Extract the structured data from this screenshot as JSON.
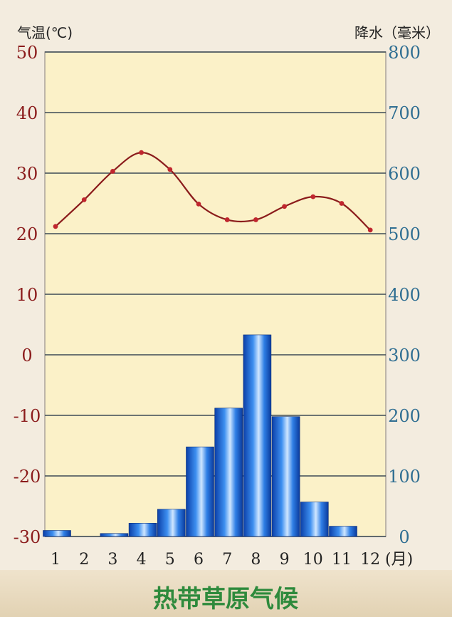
{
  "chart_data": {
    "type": "bar+line",
    "title": "热带草原气候",
    "categories": [
      "1",
      "2",
      "3",
      "4",
      "5",
      "6",
      "7",
      "8",
      "9",
      "10",
      "11",
      "12"
    ],
    "x_unit": "(月)",
    "temperature": {
      "axis_label": "气温(℃)",
      "values": [
        21.2,
        25.6,
        30.3,
        33.4,
        30.6,
        24.9,
        22.3,
        22.3,
        24.5,
        26.1,
        25.0,
        20.6
      ],
      "ylim": [
        -30,
        50
      ],
      "ticks": [
        "50",
        "40",
        "30",
        "20",
        "10",
        "0",
        "-10",
        "-20",
        "-30"
      ],
      "color": "#8b1c1c"
    },
    "precipitation": {
      "axis_label": "降水（毫米）",
      "values": [
        10,
        0,
        5,
        22,
        45,
        148,
        212,
        333,
        198,
        57,
        17,
        0
      ],
      "ylim": [
        0,
        800
      ],
      "ticks": [
        "800",
        "700",
        "600",
        "500",
        "400",
        "300",
        "200",
        "100",
        "0"
      ],
      "color": "#1e6fd9"
    },
    "grid": true,
    "plot_background": "#fbf1c8"
  }
}
